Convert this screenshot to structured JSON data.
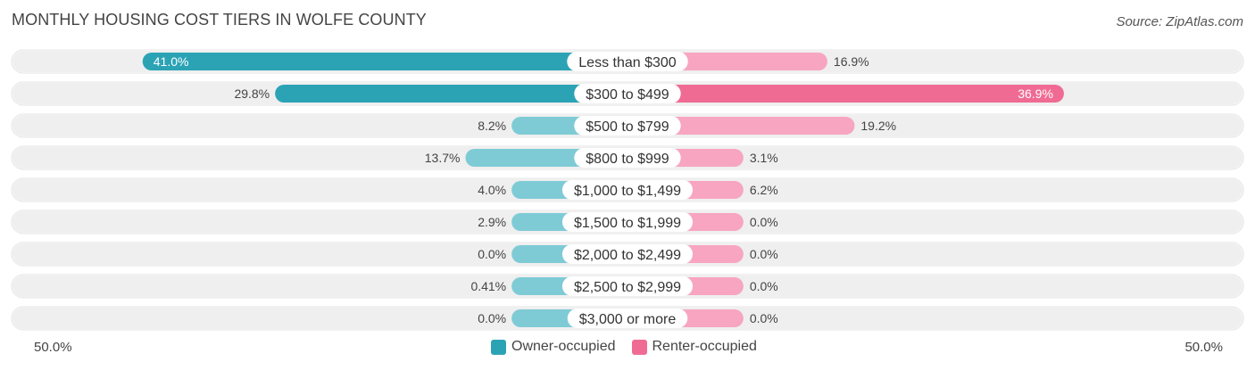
{
  "header": {
    "title": "MONTHLY HOUSING COST TIERS IN WOLFE COUNTY",
    "source": "Source: ZipAtlas.com"
  },
  "axis": {
    "left_label": "50.0%",
    "right_label": "50.0%"
  },
  "legend": {
    "owner": "Owner-occupied",
    "renter": "Renter-occupied"
  },
  "colors": {
    "owner_strong": "#2ba3b5",
    "owner_light": "#7ecbd6",
    "renter_strong": "#f06b94",
    "renter_light": "#f7a5c0",
    "track": "#efefef"
  },
  "chart_data": {
    "type": "bar",
    "orientation": "horizontal-diverging",
    "title": "MONTHLY HOUSING COST TIERS IN WOLFE COUNTY",
    "xlim": [
      -50,
      50
    ],
    "categories": [
      "Less than $300",
      "$300 to $499",
      "$500 to $799",
      "$800 to $999",
      "$1,000 to $1,499",
      "$1,500 to $1,999",
      "$2,000 to $2,499",
      "$2,500 to $2,999",
      "$3,000 or more"
    ],
    "series": [
      {
        "name": "Owner-occupied",
        "values": [
          41.0,
          29.8,
          8.2,
          13.7,
          4.0,
          2.9,
          0.0,
          0.41,
          0.0
        ],
        "labels": [
          "41.0%",
          "29.8%",
          "8.2%",
          "13.7%",
          "4.0%",
          "2.9%",
          "0.0%",
          "0.41%",
          "0.0%"
        ]
      },
      {
        "name": "Renter-occupied",
        "values": [
          16.9,
          36.9,
          19.2,
          3.1,
          6.2,
          0.0,
          0.0,
          0.0,
          0.0
        ],
        "labels": [
          "16.9%",
          "36.9%",
          "19.2%",
          "3.1%",
          "6.2%",
          "0.0%",
          "0.0%",
          "0.0%",
          "0.0%"
        ]
      }
    ],
    "legend_position": "bottom-center"
  }
}
